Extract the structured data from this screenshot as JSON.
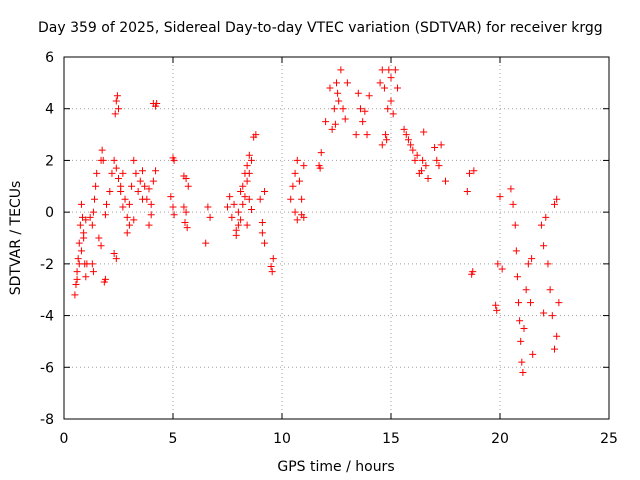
{
  "chart_data": {
    "type": "scatter",
    "title": "Day 359 of 2025, Sidereal Day-to-day VTEC variation (SDTVAR) for receiver krgg",
    "xlabel": "GPS time / hours",
    "ylabel": "SDTVAR / TECUs",
    "xlim": [
      0,
      25
    ],
    "ylim": [
      -8,
      6
    ],
    "xticks": [
      0,
      5,
      10,
      15,
      20,
      25
    ],
    "yticks": [
      -8,
      -6,
      -4,
      -2,
      0,
      2,
      4,
      6
    ],
    "grid": true,
    "marker": "+",
    "marker_color": "#ff0000",
    "series": [
      {
        "name": "SDTVAR",
        "points": [
          [
            0.5,
            -3.2
          ],
          [
            0.55,
            -2.8
          ],
          [
            0.6,
            -2.3
          ],
          [
            0.65,
            -1.8
          ],
          [
            0.7,
            -1.2
          ],
          [
            0.75,
            -0.5
          ],
          [
            0.8,
            0.3
          ],
          [
            0.85,
            -0.2
          ],
          [
            0.9,
            -1.0
          ],
          [
            0.95,
            -2.0
          ],
          [
            1.0,
            -2.5
          ],
          [
            1.05,
            -2.0
          ],
          [
            0.6,
            -2.6
          ],
          [
            0.7,
            -2.0
          ],
          [
            0.8,
            -1.5
          ],
          [
            0.9,
            -0.8
          ],
          [
            1.0,
            -0.3
          ],
          [
            1.3,
            -0.5
          ],
          [
            1.35,
            0.0
          ],
          [
            1.4,
            0.5
          ],
          [
            1.45,
            1.0
          ],
          [
            1.5,
            1.5
          ],
          [
            1.3,
            -2.0
          ],
          [
            1.35,
            -2.3
          ],
          [
            1.2,
            -0.2
          ],
          [
            1.7,
            2.0
          ],
          [
            1.75,
            2.4
          ],
          [
            1.8,
            2.0
          ],
          [
            1.6,
            -1.0
          ],
          [
            1.7,
            -1.3
          ],
          [
            1.9,
            -0.1
          ],
          [
            1.95,
            0.3
          ],
          [
            1.85,
            -2.7
          ],
          [
            1.9,
            -2.6
          ],
          [
            2.1,
            0.8
          ],
          [
            2.2,
            1.5
          ],
          [
            2.3,
            2.0
          ],
          [
            2.4,
            1.7
          ],
          [
            2.5,
            1.3
          ],
          [
            2.6,
            0.8
          ],
          [
            2.7,
            0.2
          ],
          [
            2.3,
            -1.6
          ],
          [
            2.4,
            -1.8
          ],
          [
            2.35,
            3.8
          ],
          [
            2.4,
            4.3
          ],
          [
            2.45,
            4.5
          ],
          [
            2.5,
            4.0
          ],
          [
            2.6,
            1.0
          ],
          [
            2.7,
            1.5
          ],
          [
            2.8,
            0.5
          ],
          [
            2.9,
            -0.2
          ],
          [
            3.0,
            0.3
          ],
          [
            3.1,
            1.0
          ],
          [
            3.2,
            2.0
          ],
          [
            3.3,
            1.5
          ],
          [
            3.4,
            0.8
          ],
          [
            3.5,
            1.2
          ],
          [
            3.6,
            0.5
          ],
          [
            2.9,
            -0.8
          ],
          [
            3.0,
            -0.5
          ],
          [
            3.2,
            -0.3
          ],
          [
            3.6,
            1.6
          ],
          [
            3.7,
            1.0
          ],
          [
            3.8,
            0.5
          ],
          [
            3.9,
            0.9
          ],
          [
            4.0,
            -0.1
          ],
          [
            4.1,
            1.2
          ],
          [
            4.2,
            1.6
          ],
          [
            3.9,
            -0.5
          ],
          [
            4.0,
            0.3
          ],
          [
            4.1,
            4.2
          ],
          [
            4.2,
            4.1
          ],
          [
            4.25,
            4.2
          ],
          [
            5.0,
            2.1
          ],
          [
            5.05,
            2.0
          ],
          [
            5.0,
            0.2
          ],
          [
            5.05,
            -0.1
          ],
          [
            4.9,
            0.6
          ],
          [
            5.5,
            1.4
          ],
          [
            5.6,
            1.3
          ],
          [
            5.7,
            1.0
          ],
          [
            5.5,
            0.2
          ],
          [
            5.55,
            -0.4
          ],
          [
            5.65,
            -0.6
          ],
          [
            5.6,
            0.0
          ],
          [
            6.5,
            -1.2
          ],
          [
            6.6,
            0.2
          ],
          [
            6.7,
            -0.2
          ],
          [
            7.5,
            0.2
          ],
          [
            7.6,
            0.6
          ],
          [
            7.7,
            -0.2
          ],
          [
            7.8,
            0.3
          ],
          [
            7.9,
            -0.7
          ],
          [
            8.0,
            0.0
          ],
          [
            8.1,
            0.8
          ],
          [
            8.2,
            1.0
          ],
          [
            8.3,
            1.5
          ],
          [
            8.4,
            1.2
          ],
          [
            8.5,
            0.5
          ],
          [
            8.6,
            0.1
          ],
          [
            7.9,
            -0.9
          ],
          [
            8.0,
            -0.5
          ],
          [
            8.1,
            -0.3
          ],
          [
            8.2,
            0.3
          ],
          [
            8.3,
            0.6
          ],
          [
            8.4,
            1.8
          ],
          [
            8.5,
            2.2
          ],
          [
            8.6,
            2.0
          ],
          [
            8.7,
            2.9
          ],
          [
            8.8,
            3.0
          ],
          [
            8.5,
            1.5
          ],
          [
            8.4,
            -0.5
          ],
          [
            9.0,
            0.5
          ],
          [
            9.1,
            -0.4
          ],
          [
            9.2,
            0.8
          ],
          [
            9.1,
            -0.8
          ],
          [
            9.2,
            -1.2
          ],
          [
            9.5,
            -2.1
          ],
          [
            9.55,
            -2.3
          ],
          [
            9.6,
            -1.8
          ],
          [
            10.4,
            0.5
          ],
          [
            10.5,
            1.0
          ],
          [
            10.6,
            1.5
          ],
          [
            10.7,
            2.0
          ],
          [
            10.8,
            1.2
          ],
          [
            10.9,
            0.5
          ],
          [
            11.0,
            1.8
          ],
          [
            10.9,
            -0.1
          ],
          [
            11.0,
            -0.2
          ],
          [
            10.6,
            0.0
          ],
          [
            10.7,
            -0.3
          ],
          [
            11.7,
            1.8
          ],
          [
            11.8,
            2.3
          ],
          [
            11.75,
            1.7
          ],
          [
            12.0,
            3.5
          ],
          [
            12.2,
            4.8
          ],
          [
            12.3,
            3.2
          ],
          [
            12.4,
            4.0
          ],
          [
            12.5,
            5.0
          ],
          [
            12.6,
            4.3
          ],
          [
            12.7,
            5.5
          ],
          [
            12.8,
            4.0
          ],
          [
            12.9,
            3.6
          ],
          [
            13.0,
            5.0
          ],
          [
            12.45,
            3.4
          ],
          [
            12.55,
            4.6
          ],
          [
            13.4,
            3.0
          ],
          [
            13.5,
            4.6
          ],
          [
            13.6,
            4.0
          ],
          [
            13.7,
            3.5
          ],
          [
            13.8,
            3.9
          ],
          [
            13.9,
            3.0
          ],
          [
            14.0,
            4.5
          ],
          [
            14.5,
            5.0
          ],
          [
            14.6,
            5.5
          ],
          [
            14.7,
            4.8
          ],
          [
            14.75,
            3.0
          ],
          [
            14.8,
            2.8
          ],
          [
            14.85,
            4.0
          ],
          [
            14.9,
            5.5
          ],
          [
            15.0,
            4.3
          ],
          [
            15.1,
            3.8
          ],
          [
            15.2,
            5.5
          ],
          [
            15.3,
            4.8
          ],
          [
            14.6,
            2.6
          ],
          [
            15.0,
            5.2
          ],
          [
            15.6,
            3.2
          ],
          [
            15.7,
            3.0
          ],
          [
            15.8,
            2.8
          ],
          [
            15.9,
            2.6
          ],
          [
            16.0,
            2.4
          ],
          [
            16.1,
            2.0
          ],
          [
            16.2,
            2.2
          ],
          [
            16.3,
            1.5
          ],
          [
            16.5,
            3.1
          ],
          [
            16.45,
            2.0
          ],
          [
            16.6,
            1.8
          ],
          [
            16.7,
            1.3
          ],
          [
            16.4,
            1.6
          ],
          [
            17.0,
            2.5
          ],
          [
            17.1,
            2.0
          ],
          [
            17.2,
            1.8
          ],
          [
            17.3,
            2.6
          ],
          [
            17.5,
            1.2
          ],
          [
            18.5,
            0.8
          ],
          [
            18.6,
            1.5
          ],
          [
            18.7,
            -2.4
          ],
          [
            18.75,
            -2.3
          ],
          [
            18.8,
            1.6
          ],
          [
            19.8,
            -3.6
          ],
          [
            19.85,
            -3.8
          ],
          [
            19.9,
            -2.0
          ],
          [
            20.0,
            0.6
          ],
          [
            20.1,
            -2.2
          ],
          [
            20.5,
            0.9
          ],
          [
            20.6,
            0.3
          ],
          [
            20.7,
            -0.5
          ],
          [
            20.75,
            -1.5
          ],
          [
            20.8,
            -2.5
          ],
          [
            20.85,
            -3.5
          ],
          [
            20.9,
            -4.2
          ],
          [
            20.95,
            -5.0
          ],
          [
            21.0,
            -5.8
          ],
          [
            21.05,
            -6.2
          ],
          [
            21.1,
            -4.5
          ],
          [
            21.2,
            -3.0
          ],
          [
            21.3,
            -2.0
          ],
          [
            21.4,
            -3.5
          ],
          [
            21.5,
            -5.5
          ],
          [
            21.45,
            -1.8
          ],
          [
            21.9,
            -0.5
          ],
          [
            22.0,
            -1.3
          ],
          [
            22.1,
            -0.2
          ],
          [
            22.2,
            -2.0
          ],
          [
            22.3,
            -3.0
          ],
          [
            22.4,
            -4.0
          ],
          [
            22.5,
            -5.3
          ],
          [
            22.6,
            -4.8
          ],
          [
            22.7,
            -3.5
          ],
          [
            22.5,
            0.3
          ],
          [
            22.6,
            0.5
          ],
          [
            22.0,
            -3.9
          ]
        ]
      }
    ]
  }
}
